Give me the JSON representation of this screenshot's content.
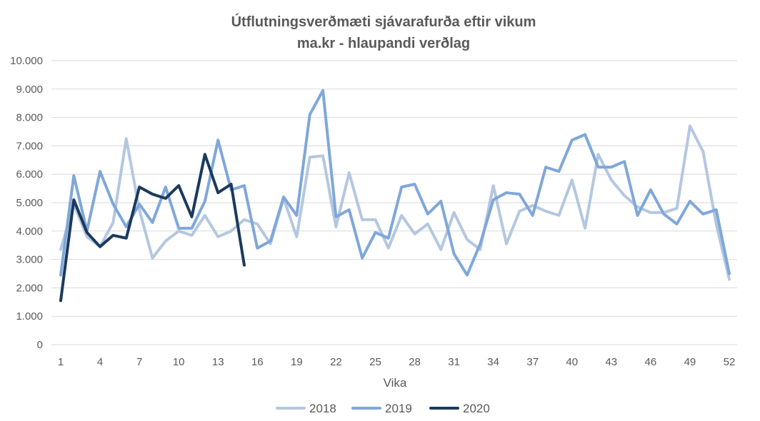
{
  "chart_data": {
    "type": "line",
    "title": "Útflutningsverðmæti sjávarafurða eftir vikum",
    "subtitle": "ma.kr - hlaupandi  verðlag",
    "xlabel": "Vika",
    "ylabel": "",
    "ylim": [
      0,
      10000
    ],
    "xlim": [
      1,
      52
    ],
    "y_ticks": [
      0,
      1000,
      2000,
      3000,
      4000,
      5000,
      6000,
      7000,
      8000,
      9000,
      10000
    ],
    "y_tick_labels": [
      "0",
      "1.000",
      "2.000",
      "3.000",
      "4.000",
      "5.000",
      "6.000",
      "7.000",
      "8.000",
      "9.000",
      "10.000"
    ],
    "x_ticks": [
      1,
      4,
      7,
      10,
      13,
      16,
      19,
      22,
      25,
      28,
      31,
      34,
      37,
      40,
      43,
      46,
      49,
      52
    ],
    "x_tick_labels": [
      "1",
      "4",
      "7",
      "10",
      "13",
      "16",
      "19",
      "22",
      "25",
      "28",
      "31",
      "34",
      "37",
      "40",
      "43",
      "46",
      "49",
      "52"
    ],
    "grid": "horizontal",
    "legend": "bottom",
    "series": [
      {
        "name": "2018",
        "color": "#b4c7e0",
        "values": [
          3350,
          4950,
          3800,
          3450,
          4300,
          7250,
          4750,
          3050,
          3650,
          4000,
          3850,
          4550,
          3800,
          4000,
          4400,
          4250,
          3550,
          5150,
          3800,
          6600,
          6650,
          4150,
          6050,
          4400,
          4400,
          3400,
          4550,
          3900,
          4250,
          3350,
          4650,
          3700,
          3350,
          5600,
          3550,
          4700,
          4900,
          4700,
          4550,
          5800,
          4100,
          6700,
          5800,
          5250,
          4850,
          4650,
          4650,
          4800,
          7700,
          6800,
          4250,
          2300
        ]
      },
      {
        "name": "2019",
        "color": "#7fa7d9",
        "values": [
          2450,
          5950,
          4000,
          6100,
          4950,
          4150,
          4950,
          4300,
          5550,
          4100,
          4100,
          5050,
          7200,
          5450,
          5600,
          3400,
          3650,
          5200,
          4550,
          8100,
          8950,
          4500,
          4750,
          3050,
          3950,
          3750,
          5550,
          5650,
          4600,
          5050,
          3200,
          2450,
          3550,
          5100,
          5350,
          5300,
          4550,
          6250,
          6100,
          7200,
          7400,
          6250,
          6250,
          6450,
          4550,
          5450,
          4600,
          4250,
          5050,
          4600,
          4750,
          2500
        ]
      },
      {
        "name": "2020",
        "color": "#1b3a5c",
        "values": [
          1550,
          5100,
          3950,
          3450,
          3850,
          3750,
          5550,
          5300,
          5150,
          5600,
          4500,
          6700,
          5350,
          5650,
          2800
        ]
      }
    ]
  }
}
